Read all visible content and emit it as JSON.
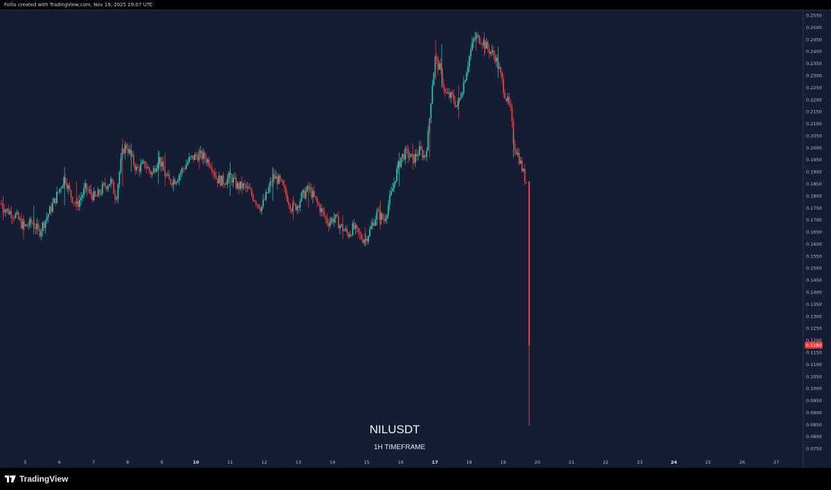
{
  "caption": "Follis created with TradingView.com, Nov 19, 2025 19:07 UTC",
  "footer": {
    "brand": "TradingView"
  },
  "watermark": {
    "symbol": "NILUSDT",
    "timeframe": "1H TIMEFRAME"
  },
  "colors": {
    "background": "#141d33",
    "up": "#26c6b0",
    "down": "#ef3b3b",
    "axis_text": "#b7bcc8"
  },
  "chart_data": {
    "type": "candlestick",
    "symbol": "NILUSDT",
    "interval": "1H",
    "last_price": "0.1180",
    "y_ticks": [
      "0.0750",
      "0.0800",
      "0.0850",
      "0.0900",
      "0.0950",
      "0.1000",
      "0.1050",
      "0.1100",
      "0.1150",
      "0.1200",
      "0.1250",
      "0.1300",
      "0.1350",
      "0.1400",
      "0.1450",
      "0.1500",
      "0.1550",
      "0.1600",
      "0.1650",
      "0.1700",
      "0.1750",
      "0.1800",
      "0.1850",
      "0.1900",
      "0.1950",
      "0.2000",
      "0.2050",
      "0.2100",
      "0.2150",
      "0.2200",
      "0.2250",
      "0.2300",
      "0.2350",
      "0.2400",
      "0.2450",
      "0.2500",
      "0.2550"
    ],
    "ylim": [
      0.0725,
      0.2565
    ],
    "x_ticks": [
      {
        "label": "5",
        "day": 5,
        "bold": false
      },
      {
        "label": "6",
        "day": 6,
        "bold": false
      },
      {
        "label": "7",
        "day": 7,
        "bold": false
      },
      {
        "label": "8",
        "day": 8,
        "bold": false
      },
      {
        "label": "9",
        "day": 9,
        "bold": false
      },
      {
        "label": "10",
        "day": 10,
        "bold": true
      },
      {
        "label": "11",
        "day": 11,
        "bold": false
      },
      {
        "label": "12",
        "day": 12,
        "bold": false
      },
      {
        "label": "13",
        "day": 13,
        "bold": false
      },
      {
        "label": "14",
        "day": 14,
        "bold": false
      },
      {
        "label": "15",
        "day": 15,
        "bold": false
      },
      {
        "label": "16",
        "day": 16,
        "bold": false
      },
      {
        "label": "17",
        "day": 17,
        "bold": true
      },
      {
        "label": "18",
        "day": 18,
        "bold": false
      },
      {
        "label": "19",
        "day": 19,
        "bold": false
      },
      {
        "label": "20",
        "day": 20,
        "bold": false
      },
      {
        "label": "21",
        "day": 21,
        "bold": false
      },
      {
        "label": "22",
        "day": 22,
        "bold": false
      },
      {
        "label": "23",
        "day": 23,
        "bold": false
      },
      {
        "label": "24",
        "day": 24,
        "bold": true
      },
      {
        "label": "25",
        "day": 25,
        "bold": false
      },
      {
        "label": "26",
        "day": 26,
        "bold": false
      },
      {
        "label": "27",
        "day": 27,
        "bold": false
      }
    ],
    "price_path": [
      [
        4.3,
        0.177
      ],
      [
        4.5,
        0.174
      ],
      [
        4.75,
        0.172
      ],
      [
        5.0,
        0.167
      ],
      [
        5.25,
        0.169
      ],
      [
        5.45,
        0.165
      ],
      [
        5.7,
        0.172
      ],
      [
        5.9,
        0.178
      ],
      [
        6.05,
        0.183
      ],
      [
        6.2,
        0.188
      ],
      [
        6.35,
        0.181
      ],
      [
        6.55,
        0.176
      ],
      [
        6.8,
        0.183
      ],
      [
        7.1,
        0.179
      ],
      [
        7.35,
        0.184
      ],
      [
        7.55,
        0.186
      ],
      [
        7.7,
        0.179
      ],
      [
        7.8,
        0.19
      ],
      [
        7.9,
        0.199
      ],
      [
        8.0,
        0.201
      ],
      [
        8.15,
        0.196
      ],
      [
        8.3,
        0.191
      ],
      [
        8.55,
        0.193
      ],
      [
        8.75,
        0.189
      ],
      [
        8.95,
        0.196
      ],
      [
        9.1,
        0.19
      ],
      [
        9.25,
        0.186
      ],
      [
        9.45,
        0.187
      ],
      [
        9.65,
        0.191
      ],
      [
        9.85,
        0.195
      ],
      [
        10.1,
        0.197
      ],
      [
        10.3,
        0.196
      ],
      [
        10.5,
        0.193
      ],
      [
        10.65,
        0.187
      ],
      [
        10.85,
        0.186
      ],
      [
        11.05,
        0.188
      ],
      [
        11.25,
        0.184
      ],
      [
        11.45,
        0.184
      ],
      [
        11.6,
        0.182
      ],
      [
        11.8,
        0.178
      ],
      [
        11.95,
        0.175
      ],
      [
        12.1,
        0.18
      ],
      [
        12.3,
        0.188
      ],
      [
        12.5,
        0.186
      ],
      [
        12.7,
        0.18
      ],
      [
        12.85,
        0.175
      ],
      [
        13.0,
        0.176
      ],
      [
        13.15,
        0.18
      ],
      [
        13.35,
        0.183
      ],
      [
        13.55,
        0.178
      ],
      [
        13.75,
        0.173
      ],
      [
        13.9,
        0.169
      ],
      [
        14.1,
        0.171
      ],
      [
        14.3,
        0.167
      ],
      [
        14.5,
        0.164
      ],
      [
        14.65,
        0.167
      ],
      [
        14.85,
        0.163
      ],
      [
        15.0,
        0.162
      ],
      [
        15.15,
        0.166
      ],
      [
        15.35,
        0.173
      ],
      [
        15.55,
        0.17
      ],
      [
        15.75,
        0.18
      ],
      [
        15.9,
        0.189
      ],
      [
        16.05,
        0.196
      ],
      [
        16.2,
        0.198
      ],
      [
        16.4,
        0.195
      ],
      [
        16.6,
        0.199
      ],
      [
        16.75,
        0.196
      ],
      [
        16.85,
        0.206
      ],
      [
        16.95,
        0.225
      ],
      [
        17.05,
        0.237
      ],
      [
        17.2,
        0.232
      ],
      [
        17.35,
        0.222
      ],
      [
        17.55,
        0.221
      ],
      [
        17.7,
        0.217
      ],
      [
        17.9,
        0.228
      ],
      [
        18.05,
        0.238
      ],
      [
        18.2,
        0.246
      ],
      [
        18.4,
        0.245
      ],
      [
        18.6,
        0.241
      ],
      [
        18.8,
        0.238
      ],
      [
        18.95,
        0.231
      ],
      [
        19.1,
        0.222
      ],
      [
        19.25,
        0.216
      ],
      [
        19.35,
        0.202
      ],
      [
        19.5,
        0.196
      ],
      [
        19.6,
        0.191
      ],
      [
        19.7,
        0.186
      ]
    ],
    "wick_ranges": [
      [
        4.35,
        0.17,
        0.18
      ],
      [
        4.95,
        0.162,
        0.172
      ],
      [
        5.25,
        0.164,
        0.176
      ],
      [
        6.15,
        0.176,
        0.192
      ],
      [
        6.5,
        0.174,
        0.186
      ],
      [
        7.85,
        0.184,
        0.204
      ],
      [
        8.1,
        0.19,
        0.202
      ],
      [
        8.9,
        0.185,
        0.199
      ],
      [
        9.1,
        0.184,
        0.198
      ],
      [
        10.1,
        0.191,
        0.199
      ],
      [
        11.0,
        0.18,
        0.194
      ],
      [
        12.25,
        0.178,
        0.192
      ],
      [
        12.85,
        0.17,
        0.18
      ],
      [
        13.3,
        0.175,
        0.186
      ],
      [
        14.3,
        0.162,
        0.172
      ],
      [
        14.95,
        0.159,
        0.167
      ],
      [
        15.4,
        0.166,
        0.178
      ],
      [
        15.95,
        0.184,
        0.198
      ],
      [
        16.35,
        0.191,
        0.202
      ],
      [
        16.85,
        0.196,
        0.212
      ],
      [
        17.02,
        0.228,
        0.245
      ],
      [
        17.2,
        0.225,
        0.243
      ],
      [
        17.7,
        0.212,
        0.226
      ],
      [
        18.2,
        0.24,
        0.248
      ],
      [
        18.45,
        0.238,
        0.248
      ],
      [
        18.85,
        0.229,
        0.242
      ],
      [
        19.3,
        0.196,
        0.206
      ]
    ],
    "final_candle": {
      "day": 19.76,
      "open": 0.186,
      "high": 0.186,
      "low": 0.0845,
      "close": 0.118
    }
  }
}
